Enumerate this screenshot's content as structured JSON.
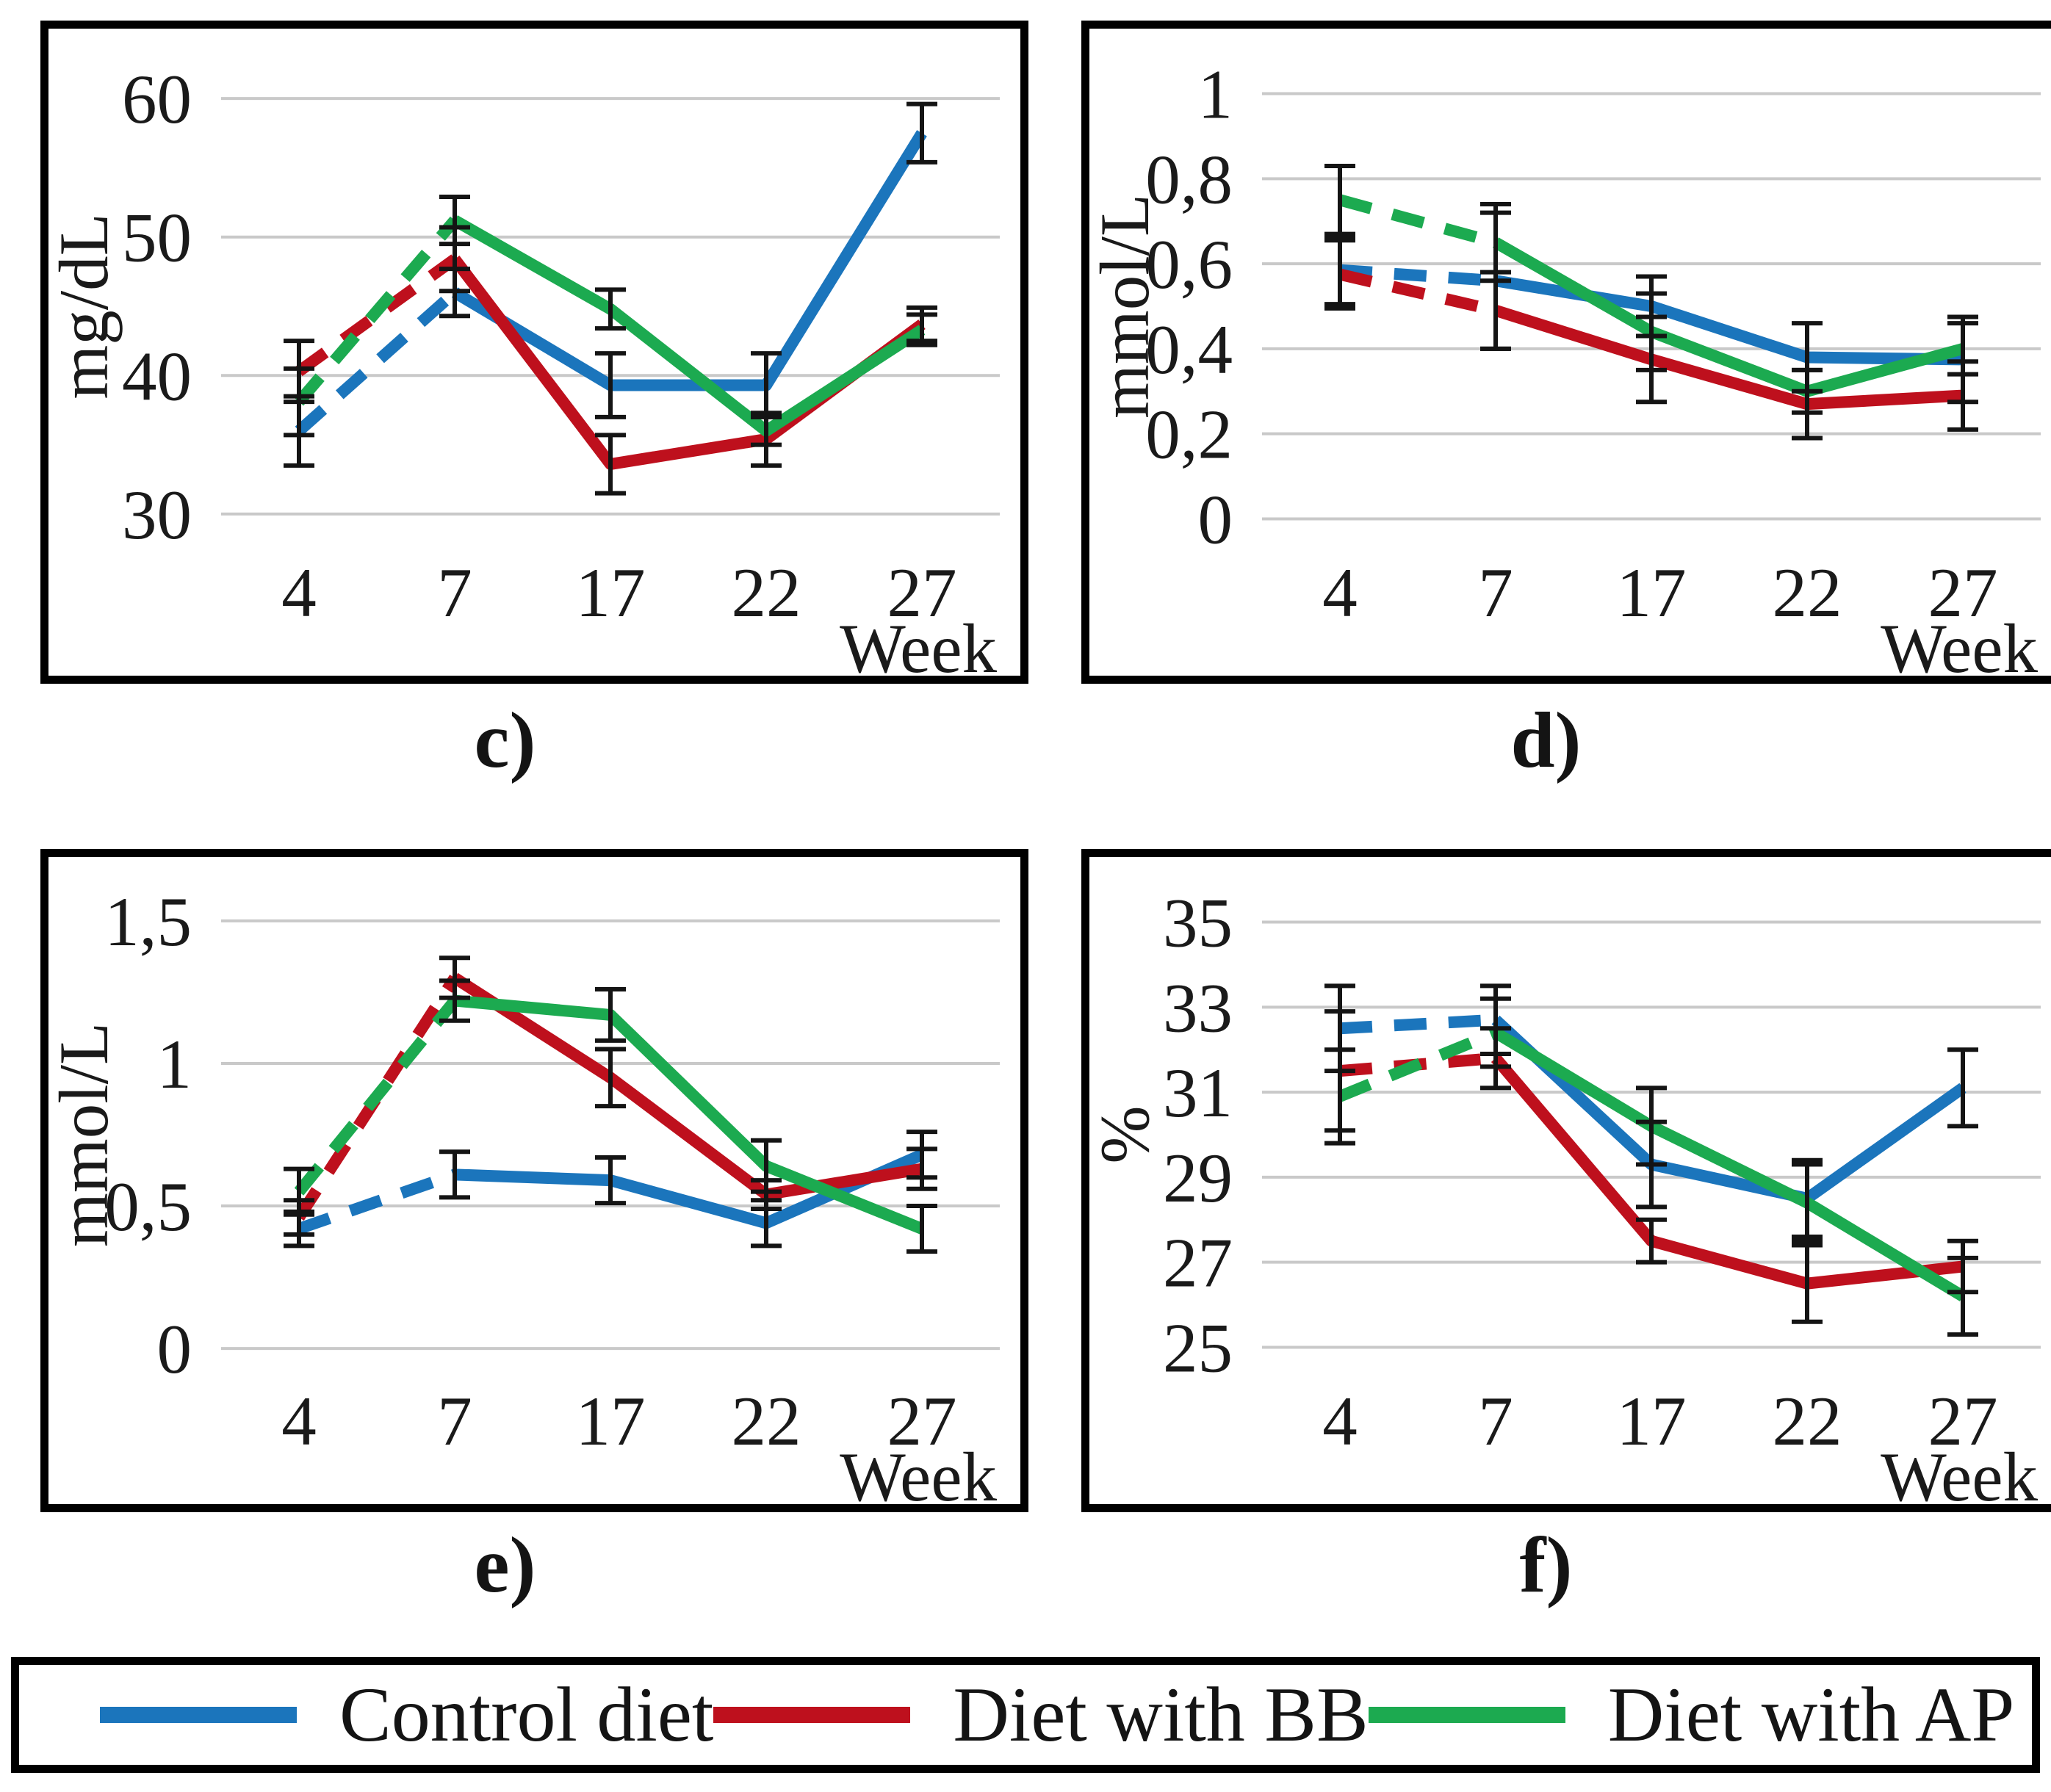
{
  "colors": {
    "control": "#1B75BC",
    "bb": "#BE101D",
    "ap": "#1CAA50",
    "grid": "#C9C9C9",
    "error_bar": "#141414"
  },
  "legend": {
    "items": [
      {
        "label": "Control diet",
        "color": "control"
      },
      {
        "label": "Diet with BB",
        "color": "bb"
      },
      {
        "label": "Diet with AP",
        "color": "ap"
      }
    ]
  },
  "chart_data": [
    {
      "id": "c",
      "type": "line",
      "caption": "c)",
      "ylabel": "mg/dL",
      "xlabel": "Week",
      "categories": [
        "4",
        "7",
        "17",
        "22",
        "27"
      ],
      "ylim": [
        27.5,
        62.5
      ],
      "yticks": [
        {
          "value": 60,
          "label": "60"
        },
        {
          "value": 50,
          "label": "50"
        },
        {
          "value": 40,
          "label": "40"
        },
        {
          "value": 30,
          "label": "30"
        }
      ],
      "grid": true,
      "legend_position": "none",
      "dashed_until_index": 1,
      "series": [
        {
          "name": "Control diet",
          "color": "control",
          "values": [
            36.0,
            46.0,
            39.3,
            39.3,
            57.5
          ],
          "errors": [
            2.5,
            1.7,
            2.3,
            2.3,
            2.1
          ]
        },
        {
          "name": "Diet with BB",
          "color": "bb",
          "values": [
            40.3,
            48.4,
            33.6,
            35.4,
            43.7
          ],
          "errors": [
            2.2,
            2.3,
            2.1,
            1.9,
            1.2
          ]
        },
        {
          "name": "Diet with AP",
          "color": "ap",
          "values": [
            38.1,
            51.2,
            44.8,
            36.0,
            43.3
          ],
          "errors": [
            2.4,
            1.7,
            1.4,
            1.0,
            1.1
          ]
        }
      ]
    },
    {
      "id": "d",
      "type": "line",
      "caption": "d)",
      "ylabel": "mmol/L",
      "xlabel": "Week",
      "categories": [
        "4",
        "7",
        "17",
        "22",
        "27"
      ],
      "ylim": [
        -0.07,
        1.07
      ],
      "yticks": [
        {
          "value": 1,
          "label": "1"
        },
        {
          "value": 0.8,
          "label": "0,8"
        },
        {
          "value": 0.6,
          "label": "0,6"
        },
        {
          "value": 0.4,
          "label": "0,4"
        },
        {
          "value": 0.2,
          "label": "0,2"
        },
        {
          "value": 0,
          "label": "0"
        }
      ],
      "grid": true,
      "legend_position": "none",
      "dashed_until_index": 1,
      "series": [
        {
          "name": "Control diet",
          "color": "control",
          "values": [
            0.585,
            0.56,
            0.5,
            0.38,
            0.375
          ],
          "errors": [
            0.08,
            0.16,
            0.07,
            0.08,
            0.1
          ]
        },
        {
          "name": "Diet with BB",
          "color": "bb",
          "values": [
            0.575,
            0.49,
            0.375,
            0.27,
            0.29
          ],
          "errors": [
            0.08,
            0.09,
            0.1,
            0.08,
            0.08
          ]
        },
        {
          "name": "Diet with AP",
          "color": "ap",
          "values": [
            0.75,
            0.65,
            0.44,
            0.3,
            0.4
          ],
          "errors": [
            0.08,
            0.09,
            0.09,
            0.05,
            0.06
          ]
        }
      ]
    },
    {
      "id": "e",
      "type": "line",
      "caption": "e)",
      "ylabel": "mmol/L",
      "xlabel": "Week",
      "categories": [
        "4",
        "7",
        "17",
        "22",
        "27"
      ],
      "ylim": [
        -0.1,
        1.6
      ],
      "yticks": [
        {
          "value": 1.5,
          "label": "1,5"
        },
        {
          "value": 1,
          "label": "1"
        },
        {
          "value": 0.5,
          "label": "0,5"
        },
        {
          "value": 0,
          "label": "0"
        }
      ],
      "grid": true,
      "legend_position": "none",
      "dashed_until_index": 1,
      "series": [
        {
          "name": "Control diet",
          "color": "control",
          "values": [
            0.42,
            0.61,
            0.59,
            0.44,
            0.68
          ],
          "errors": [
            0.06,
            0.08,
            0.08,
            0.08,
            0.08
          ]
        },
        {
          "name": "Diet with BB",
          "color": "bb",
          "values": [
            0.46,
            1.3,
            0.95,
            0.54,
            0.63
          ],
          "errors": [
            0.06,
            0.07,
            0.1,
            0.05,
            0.07
          ]
        },
        {
          "name": "Diet with AP",
          "color": "ap",
          "values": [
            0.55,
            1.22,
            1.17,
            0.64,
            0.42
          ],
          "errors": [
            0.08,
            0.07,
            0.09,
            0.09,
            0.08
          ]
        }
      ]
    },
    {
      "id": "f",
      "type": "line",
      "caption": "f)",
      "ylabel": "%",
      "xlabel": "Week",
      "categories": [
        "4",
        "7",
        "17",
        "22",
        "27"
      ],
      "ylim": [
        24.3,
        35.7
      ],
      "yticks": [
        {
          "value": 35,
          "label": "35"
        },
        {
          "value": 33,
          "label": "33"
        },
        {
          "value": 31,
          "label": "31"
        },
        {
          "value": 29,
          "label": "29"
        },
        {
          "value": 27,
          "label": "27"
        },
        {
          "value": 25,
          "label": "25"
        }
      ],
      "grid": true,
      "legend_position": "none",
      "dashed_until_index": 1,
      "series": [
        {
          "name": "Control diet",
          "color": "control",
          "values": [
            32.5,
            32.7,
            29.3,
            28.5,
            31.1
          ],
          "errors": [
            1.0,
            0.8,
            1.0,
            0.9,
            0.9
          ]
        },
        {
          "name": "Diet with BB",
          "color": "bb",
          "values": [
            31.5,
            31.8,
            27.5,
            26.5,
            26.9
          ],
          "errors": [
            1.4,
            0.7,
            0.5,
            0.9,
            0.6
          ]
        },
        {
          "name": "Diet with AP",
          "color": "ap",
          "values": [
            30.9,
            32.4,
            30.2,
            28.4,
            26.2
          ],
          "errors": [
            1.1,
            0.8,
            0.9,
            0.9,
            0.9
          ]
        }
      ]
    }
  ]
}
